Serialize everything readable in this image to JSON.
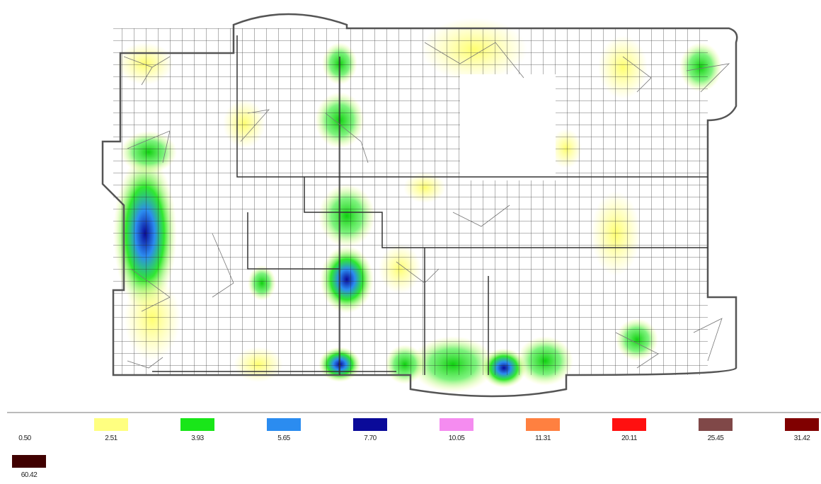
{
  "legend": {
    "items": [
      {
        "label": "0.50",
        "color": "#ffffff"
      },
      {
        "label": "2.51",
        "color": "#ffff80"
      },
      {
        "label": "3.93",
        "color": "#19e619"
      },
      {
        "label": "5.65",
        "color": "#2b8cf0"
      },
      {
        "label": "7.70",
        "color": "#0a0a99"
      },
      {
        "label": "10.05",
        "color": "#f58cf0"
      },
      {
        "label": "11.31",
        "color": "#ff8040"
      },
      {
        "label": "20.11",
        "color": "#ff1010"
      },
      {
        "label": "25.45",
        "color": "#804848"
      },
      {
        "label": "31.42",
        "color": "#800000"
      },
      {
        "label": "60.42",
        "color": "#400000"
      }
    ]
  }
}
